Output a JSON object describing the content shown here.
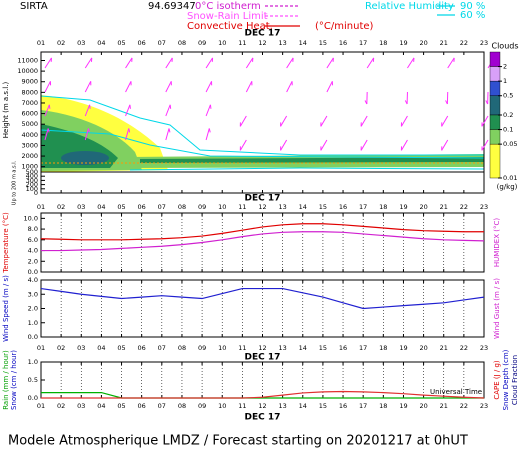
{
  "header": {
    "station": "SIRTA",
    "station_id": "94.69347",
    "legend": [
      {
        "label": "0°C isotherm",
        "color": "#d020d0"
      },
      {
        "label": "Snow-Rain Limit",
        "color": "#ff50ff"
      },
      {
        "label": "Convective Heat.",
        "color": "#e00000"
      }
    ],
    "convective_unit": "(°C/minute)",
    "rh_label": "Relative Humidity",
    "rh_levels": [
      "90 %",
      "60 %"
    ],
    "rh_color": "#00d8e8"
  },
  "x_label": "Universal Time",
  "footer": "Modele Atmospherique LMDZ / Forecast starting on 20201217 at 0hUT",
  "chart_data": [
    {
      "type": "contour",
      "title": "DEC 17",
      "categories": [
        "01",
        "02",
        "03",
        "04",
        "05",
        "06",
        "07",
        "08",
        "09",
        "10",
        "11",
        "12",
        "13",
        "14",
        "15",
        "16",
        "17",
        "18",
        "19",
        "20",
        "21",
        "22",
        "23"
      ],
      "ylabels": [
        {
          "label": "Height (m a.s.l.)",
          "color": "#000000"
        },
        {
          "label": "Up to 200 m a.s.l.",
          "color": "#000000"
        }
      ],
      "ylim": [
        500,
        11800
      ],
      "yticks": [
        1000,
        2000,
        3000,
        4000,
        5000,
        6000,
        7000,
        8000,
        9000,
        10000,
        11000
      ],
      "ylim_low": [
        0,
        500
      ],
      "yticks_low": [
        0,
        100,
        200,
        300,
        400,
        500
      ],
      "colorbar": {
        "title": "Clouds",
        "unit": "(g/kg)",
        "log": true,
        "lim": [
          0.01,
          4
        ],
        "ticks": [
          2,
          1,
          0.5,
          0.2,
          0.1,
          0.05,
          0.01
        ],
        "colors": [
          "#a000d0",
          "#d8a0f8",
          "#3050d0",
          "#206878",
          "#209050",
          "#80d060",
          "#ffff40"
        ]
      }
    },
    {
      "type": "line",
      "title": "DEC 17",
      "categories": [
        "01",
        "02",
        "03",
        "04",
        "05",
        "06",
        "07",
        "08",
        "09",
        "10",
        "11",
        "12",
        "13",
        "14",
        "15",
        "16",
        "17",
        "18",
        "19",
        "20",
        "21",
        "22",
        "23"
      ],
      "ylabels": [
        {
          "label": "Temperature (°C)",
          "color": "#e00000"
        }
      ],
      "y2labels": [
        {
          "label": "HUMIDEX (°C)",
          "color": "#d020d0"
        }
      ],
      "ylim": [
        0,
        11
      ],
      "yticks": [
        {
          "value": 0,
          "label": "0.0"
        },
        {
          "value": 2,
          "label": "2.0"
        },
        {
          "value": 4,
          "label": "4.0"
        },
        {
          "value": 6,
          "label": "6.0"
        },
        {
          "value": 8,
          "label": "8.0"
        },
        {
          "value": 10,
          "label": "10.0"
        }
      ],
      "series": [
        {
          "name": "Temperature",
          "color": "#e00000",
          "values": [
            6.2,
            6.1,
            6.0,
            6.0,
            6.0,
            6.1,
            6.2,
            6.4,
            6.7,
            7.2,
            7.8,
            8.4,
            8.8,
            9.0,
            9.0,
            8.8,
            8.5,
            8.2,
            7.9,
            7.7,
            7.6,
            7.5,
            7.5
          ]
        },
        {
          "name": "Humidex",
          "color": "#d020d0",
          "values": [
            4.0,
            4.0,
            4.1,
            4.2,
            4.4,
            4.6,
            4.8,
            5.1,
            5.5,
            6.0,
            6.6,
            7.1,
            7.4,
            7.5,
            7.5,
            7.4,
            7.1,
            6.8,
            6.5,
            6.2,
            6.0,
            5.9,
            5.8
          ]
        }
      ]
    },
    {
      "type": "line",
      "title": "DEC 17",
      "categories": [
        "01",
        "02",
        "03",
        "04",
        "05",
        "06",
        "07",
        "08",
        "09",
        "10",
        "11",
        "12",
        "13",
        "14",
        "15",
        "16",
        "17",
        "18",
        "19",
        "20",
        "21",
        "22",
        "23"
      ],
      "ylabels": [
        {
          "label": "Wind Speed (m / s)",
          "color": "#0000c0"
        }
      ],
      "y2labels": [
        {
          "label": "Wind Gust (m / s)",
          "color": "#d020d0"
        }
      ],
      "ylim": [
        0,
        4
      ],
      "yticks": [
        {
          "value": 0,
          "label": "0.0"
        },
        {
          "value": 1,
          "label": "1.0"
        },
        {
          "value": 2,
          "label": "2.0"
        },
        {
          "value": 3,
          "label": "3.0"
        },
        {
          "value": 4,
          "label": "4.0"
        }
      ],
      "series": [
        {
          "name": "Wind Speed",
          "color": "#2020d0",
          "values": [
            3.4,
            3.2,
            3.0,
            2.85,
            2.7,
            2.8,
            2.9,
            2.8,
            2.7,
            3.05,
            3.4,
            3.4,
            3.4,
            3.1,
            2.8,
            2.4,
            2.0,
            2.1,
            2.2,
            2.3,
            2.4,
            2.6,
            2.8
          ]
        }
      ]
    },
    {
      "type": "line",
      "title": "DEC 17",
      "categories": [
        "01",
        "02",
        "03",
        "04",
        "05",
        "06",
        "07",
        "08",
        "09",
        "10",
        "11",
        "12",
        "13",
        "14",
        "15",
        "16",
        "17",
        "18",
        "19",
        "20",
        "21",
        "22",
        "23"
      ],
      "ylabels": [
        {
          "label": "Rain (mm / hour)",
          "color": "#00a000"
        },
        {
          "label": "Snow (cm / hour)",
          "color": "#0000c0"
        }
      ],
      "y2labels": [
        {
          "label": "CAPE (J / g)",
          "color": "#e00000"
        },
        {
          "label": "Snow Depth (cm)",
          "color": "#0000c0"
        },
        {
          "label": "Cloud Fraction",
          "color": "#000080"
        }
      ],
      "ylim": [
        0,
        1
      ],
      "yticks": [
        {
          "value": 0,
          "label": "0.0"
        },
        {
          "value": 0.5,
          "label": "0.5"
        },
        {
          "value": 1,
          "label": "1.0"
        }
      ],
      "series": [
        {
          "name": "Rain",
          "color": "#00b000",
          "values": [
            0.15,
            0.15,
            0.15,
            0.15,
            0,
            0,
            0,
            0,
            0,
            0,
            0,
            0,
            0,
            0,
            0,
            0,
            0,
            0,
            0,
            0,
            0,
            0,
            0
          ]
        },
        {
          "name": "CAPE",
          "color": "#e03030",
          "values": [
            0,
            0,
            0,
            0,
            0,
            0,
            0,
            0,
            0,
            0,
            0,
            0.02,
            0.08,
            0.14,
            0.17,
            0.18,
            0.17,
            0.15,
            0.12,
            0.08,
            0.05,
            0.02,
            0
          ]
        }
      ]
    }
  ]
}
